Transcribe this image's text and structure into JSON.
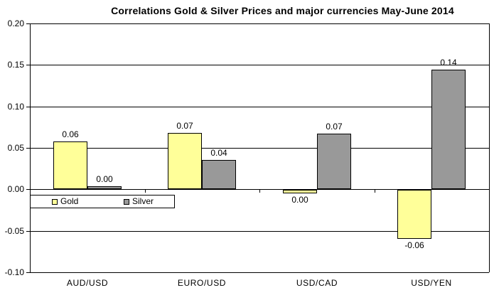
{
  "chart_data": {
    "type": "bar",
    "title": "Correlations Gold & Silver Prices and major currencies May-June 2014",
    "categories": [
      "AUD/USD",
      "EURO/USD",
      "USD/CAD",
      "USD/YEN"
    ],
    "series": [
      {
        "name": "Gold",
        "color": "#FFFF99",
        "values": [
          0.058,
          0.068,
          -0.004,
          -0.059
        ],
        "labels": [
          "0.06",
          "0.07",
          "0.00",
          "-0.06"
        ]
      },
      {
        "name": "Silver",
        "color": "#999999",
        "values": [
          0.004,
          0.035,
          0.067,
          0.144
        ],
        "labels": [
          "0.00",
          "0.04",
          "0.07",
          "0.14"
        ]
      }
    ],
    "ylim": [
      -0.1,
      0.2
    ],
    "yticks": [
      0.2,
      0.15,
      0.1,
      0.05,
      0.0,
      -0.05,
      -0.1
    ],
    "ytick_labels": [
      "0.20",
      "0.15",
      "0.10",
      "0.05",
      "0.00",
      "-0.05",
      "-0.10"
    ],
    "xlabel": "",
    "ylabel": "",
    "grid": true,
    "legend_position": "inside-upper-left-of-negative-region",
    "colors": {
      "axis": "#000000",
      "gridline": "#000000",
      "bar_border": "#000000",
      "background": "#FFFFFF",
      "text": "#000000"
    }
  }
}
